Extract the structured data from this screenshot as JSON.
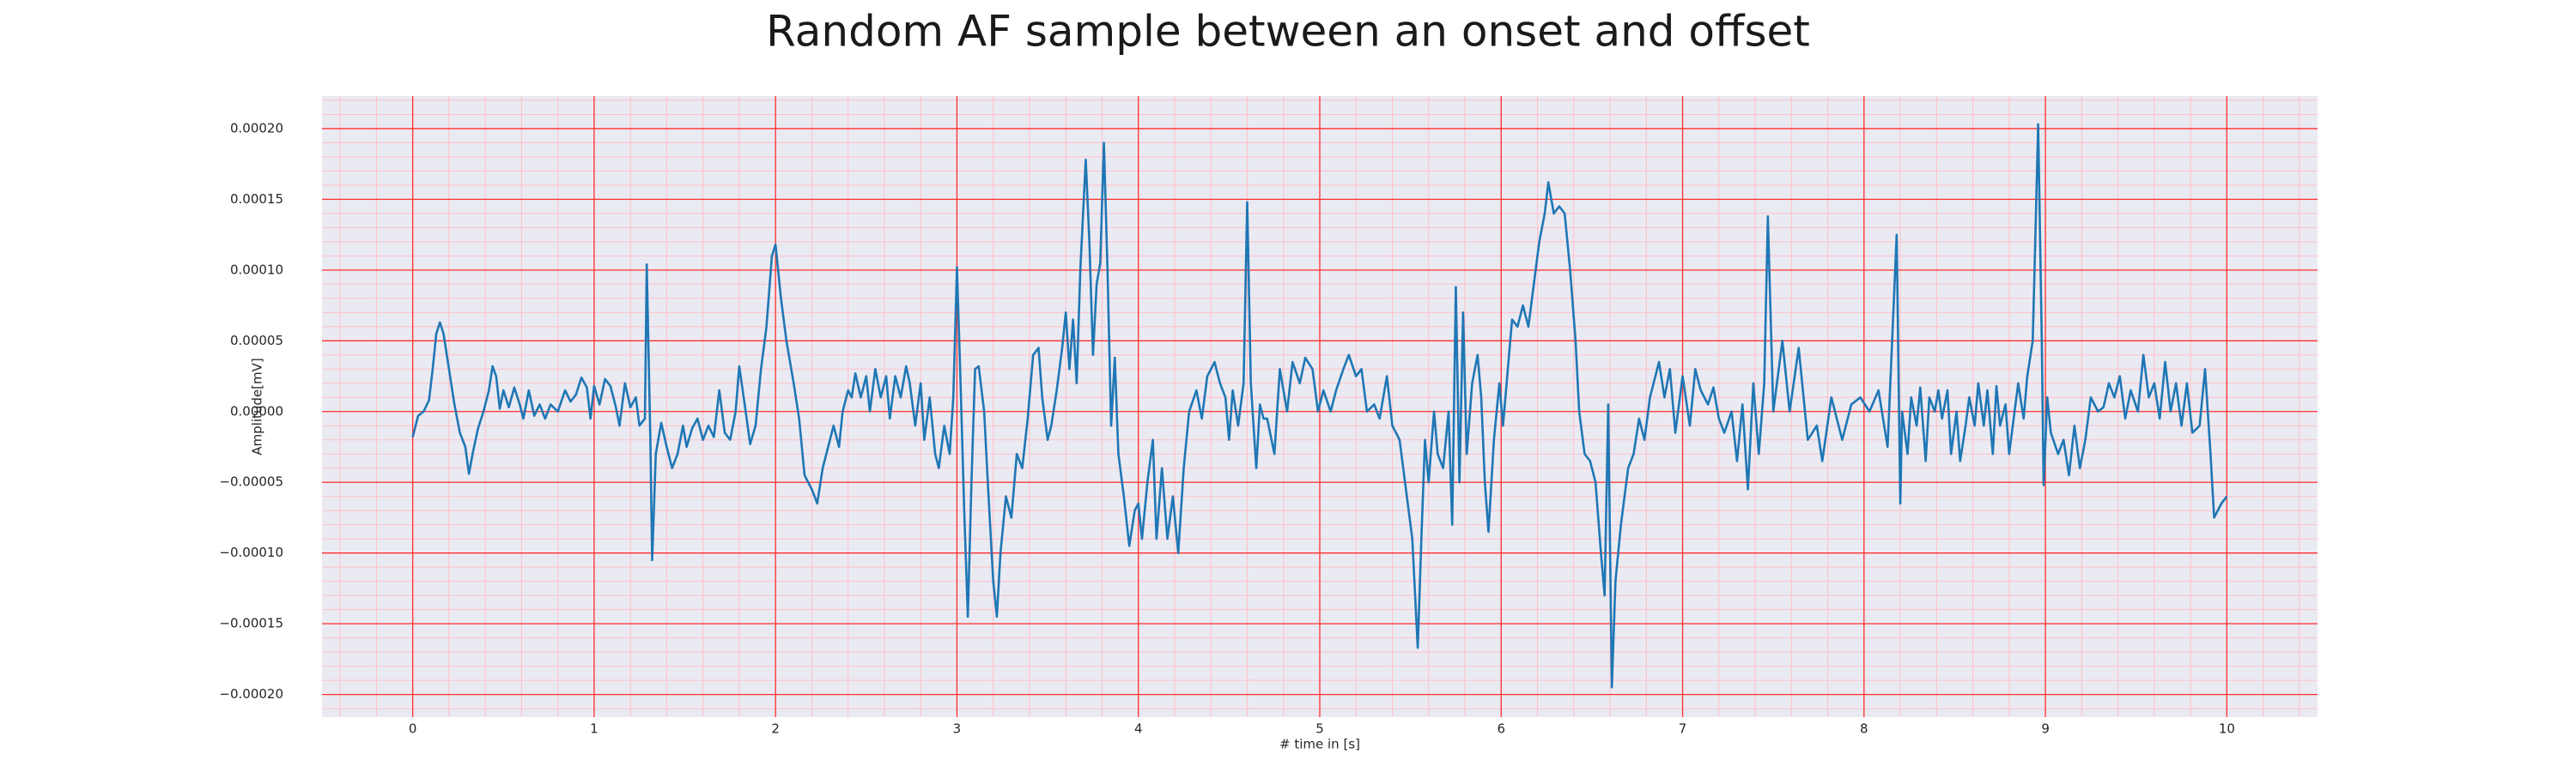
{
  "chart_data": {
    "type": "line",
    "title": "Random AF sample between an onset and offset",
    "xlabel": "# time in [s]",
    "ylabel": "Amplitude[mV]",
    "color": "#1f77b4",
    "background": "#eaeaf2",
    "grid": true,
    "grid_color": "#ff3030",
    "minor_grid_color": "#ffbfc8",
    "minor_grid_divisions": 5,
    "xlim": [
      -0.5,
      10.5
    ],
    "xticks": [
      0,
      1,
      2,
      3,
      4,
      5,
      6,
      7,
      8,
      9,
      10
    ],
    "ylim": [
      -0.000216,
      0.000223
    ],
    "yticks": [
      {
        "value": -0.0002,
        "label": "−0.00020"
      },
      {
        "value": -0.00015,
        "label": "−0.00015"
      },
      {
        "value": -0.0001,
        "label": "−0.00010"
      },
      {
        "value": -5e-05,
        "label": "−0.00005"
      },
      {
        "value": 0,
        "label": "0.00000"
      },
      {
        "value": 5e-05,
        "label": "0.00005"
      },
      {
        "value": 0.0001,
        "label": "0.00010"
      },
      {
        "value": 0.00015,
        "label": "0.00015"
      },
      {
        "value": 0.0002,
        "label": "0.00020"
      }
    ],
    "x": [
      0,
      0.03,
      0.06,
      0.09,
      0.11,
      0.13,
      0.15,
      0.17,
      0.2,
      0.23,
      0.26,
      0.29,
      0.31,
      0.33,
      0.36,
      0.39,
      0.42,
      0.44,
      0.46,
      0.48,
      0.5,
      0.53,
      0.56,
      0.59,
      0.61,
      0.64,
      0.67,
      0.7,
      0.73,
      0.76,
      0.8,
      0.84,
      0.87,
      0.9,
      0.93,
      0.96,
      0.98,
      1.0,
      1.03,
      1.06,
      1.09,
      1.12,
      1.14,
      1.17,
      1.2,
      1.23,
      1.25,
      1.28,
      1.29,
      1.31,
      1.32,
      1.34,
      1.37,
      1.4,
      1.43,
      1.46,
      1.49,
      1.51,
      1.54,
      1.57,
      1.6,
      1.63,
      1.66,
      1.69,
      1.72,
      1.75,
      1.78,
      1.8,
      1.83,
      1.86,
      1.89,
      1.92,
      1.95,
      1.98,
      2.0,
      2.03,
      2.06,
      2.1,
      2.13,
      2.16,
      2.2,
      2.23,
      2.26,
      2.29,
      2.32,
      2.35,
      2.37,
      2.4,
      2.42,
      2.44,
      2.47,
      2.5,
      2.52,
      2.55,
      2.58,
      2.61,
      2.63,
      2.66,
      2.69,
      2.72,
      2.74,
      2.77,
      2.8,
      2.82,
      2.85,
      2.88,
      2.9,
      2.93,
      2.96,
      2.98,
      3.0,
      3.02,
      3.04,
      3.06,
      3.08,
      3.1,
      3.12,
      3.15,
      3.17,
      3.2,
      3.22,
      3.24,
      3.27,
      3.3,
      3.33,
      3.36,
      3.39,
      3.42,
      3.45,
      3.47,
      3.5,
      3.52,
      3.55,
      3.58,
      3.6,
      3.62,
      3.64,
      3.66,
      3.68,
      3.71,
      3.73,
      3.75,
      3.77,
      3.79,
      3.81,
      3.83,
      3.85,
      3.87,
      3.89,
      3.92,
      3.95,
      3.98,
      4.0,
      4.02,
      4.05,
      4.08,
      4.1,
      4.13,
      4.16,
      4.19,
      4.22,
      4.25,
      4.28,
      4.32,
      4.35,
      4.38,
      4.42,
      4.45,
      4.48,
      4.5,
      4.52,
      4.55,
      4.58,
      4.6,
      4.62,
      4.65,
      4.67,
      4.69,
      4.71,
      4.75,
      4.78,
      4.82,
      4.85,
      4.89,
      4.92,
      4.96,
      4.99,
      5.02,
      5.06,
      5.09,
      5.13,
      5.16,
      5.2,
      5.23,
      5.26,
      5.3,
      5.33,
      5.37,
      5.4,
      5.44,
      5.47,
      5.51,
      5.54,
      5.56,
      5.58,
      5.6,
      5.63,
      5.65,
      5.68,
      5.71,
      5.73,
      5.75,
      5.77,
      5.79,
      5.81,
      5.84,
      5.87,
      5.89,
      5.91,
      5.93,
      5.96,
      5.99,
      6.01,
      6.03,
      6.06,
      6.09,
      6.12,
      6.15,
      6.18,
      6.21,
      6.24,
      6.26,
      6.29,
      6.32,
      6.35,
      6.38,
      6.41,
      6.43,
      6.46,
      6.49,
      6.52,
      6.55,
      6.57,
      6.59,
      6.61,
      6.63,
      6.66,
      6.7,
      6.73,
      6.76,
      6.79,
      6.82,
      6.87,
      6.9,
      6.93,
      6.96,
      7.0,
      7.04,
      7.07,
      7.1,
      7.14,
      7.17,
      7.2,
      7.23,
      7.27,
      7.3,
      7.33,
      7.36,
      7.39,
      7.42,
      7.45,
      7.47,
      7.5,
      7.55,
      7.59,
      7.64,
      7.69,
      7.74,
      7.77,
      7.82,
      7.88,
      7.93,
      7.98,
      8.03,
      8.08,
      8.13,
      8.18,
      8.2,
      8.21,
      8.24,
      8.26,
      8.29,
      8.31,
      8.34,
      8.36,
      8.39,
      8.41,
      8.43,
      8.46,
      8.48,
      8.51,
      8.53,
      8.56,
      8.58,
      8.61,
      8.63,
      8.66,
      8.68,
      8.71,
      8.73,
      8.75,
      8.78,
      8.8,
      8.83,
      8.85,
      8.88,
      8.9,
      8.93,
      8.94,
      8.96,
      8.98,
      8.99,
      9.01,
      9.03,
      9.07,
      9.1,
      9.13,
      9.16,
      9.19,
      9.22,
      9.25,
      9.29,
      9.32,
      9.35,
      9.38,
      9.41,
      9.44,
      9.47,
      9.51,
      9.54,
      9.57,
      9.6,
      9.63,
      9.66,
      9.69,
      9.72,
      9.75,
      9.78,
      9.81,
      9.85,
      9.88,
      9.91,
      9.93,
      9.95,
      9.97,
      10.0
    ],
    "values": [
      -1.8e-05,
      -3e-06,
      0,
      8e-06,
      3e-05,
      5.5e-05,
      6.3e-05,
      5.5e-05,
      3e-05,
      5e-06,
      -1.5e-05,
      -2.5e-05,
      -4.4e-05,
      -3e-05,
      -1.2e-05,
      0,
      1.5e-05,
      3.2e-05,
      2.5e-05,
      2e-06,
      1.5e-05,
      3e-06,
      1.7e-05,
      5e-06,
      -5e-06,
      1.5e-05,
      -3e-06,
      5e-06,
      -5e-06,
      5e-06,
      0,
      1.5e-05,
      7e-06,
      1.2e-05,
      2.4e-05,
      1.7e-05,
      -5e-06,
      1.8e-05,
      5e-06,
      2.3e-05,
      1.8e-05,
      3e-06,
      -1e-05,
      2e-05,
      3e-06,
      1e-05,
      -1e-05,
      -5e-06,
      0.000104,
      -2e-05,
      -0.000105,
      -3e-05,
      -8e-06,
      -2.5e-05,
      -4e-05,
      -3e-05,
      -1e-05,
      -2.5e-05,
      -1.2e-05,
      -5e-06,
      -2e-05,
      -1e-05,
      -1.8e-05,
      1.5e-05,
      -1.5e-05,
      -2e-05,
      0,
      3.2e-05,
      5e-06,
      -2.3e-05,
      -1e-05,
      3e-05,
      6e-05,
      0.00011,
      0.000118,
      8e-05,
      5e-05,
      2e-05,
      -5e-06,
      -4.5e-05,
      -5.5e-05,
      -6.5e-05,
      -4e-05,
      -2.5e-05,
      -1e-05,
      -2.5e-05,
      0,
      1.5e-05,
      1e-05,
      2.7e-05,
      1e-05,
      2.5e-05,
      0,
      3e-05,
      1e-05,
      2.5e-05,
      -5e-06,
      2.5e-05,
      1e-05,
      3.2e-05,
      2e-05,
      -1e-05,
      2e-05,
      -2e-05,
      1e-05,
      -3e-05,
      -4e-05,
      -1e-05,
      -3e-05,
      1e-05,
      0.000102,
      2e-05,
      -7e-05,
      -0.000145,
      -5e-05,
      3e-05,
      3.2e-05,
      0,
      -5e-05,
      -0.00012,
      -0.000145,
      -0.0001,
      -6e-05,
      -7.5e-05,
      -3e-05,
      -4e-05,
      -5e-06,
      4e-05,
      4.5e-05,
      1e-05,
      -2e-05,
      -1e-05,
      1.5e-05,
      4.5e-05,
      7e-05,
      3e-05,
      6.5e-05,
      2e-05,
      0.0001,
      0.000178,
      0.00012,
      4e-05,
      9e-05,
      0.000105,
      0.00019,
      0.0001,
      -1e-05,
      3.8e-05,
      -3e-05,
      -6e-05,
      -9.5e-05,
      -7e-05,
      -6.5e-05,
      -9e-05,
      -5e-05,
      -2e-05,
      -9e-05,
      -4e-05,
      -9e-05,
      -6e-05,
      -0.0001,
      -4e-05,
      0,
      1.5e-05,
      -5e-06,
      2.5e-05,
      3.5e-05,
      2e-05,
      1e-05,
      -2e-05,
      1.5e-05,
      -1e-05,
      2e-05,
      0.000148,
      2e-05,
      -4e-05,
      5e-06,
      -5e-06,
      -5e-06,
      -3e-05,
      3e-05,
      0,
      3.5e-05,
      2e-05,
      3.8e-05,
      3e-05,
      0,
      1.5e-05,
      0,
      1.5e-05,
      3e-05,
      4e-05,
      2.5e-05,
      3e-05,
      0,
      5e-06,
      -5e-06,
      2.5e-05,
      -1e-05,
      -2e-05,
      -5e-05,
      -9e-05,
      -0.000167,
      -9e-05,
      -2e-05,
      -5e-05,
      0,
      -3e-05,
      -4e-05,
      0,
      -8e-05,
      8.8e-05,
      -5e-05,
      7e-05,
      -3e-05,
      2e-05,
      4e-05,
      1e-05,
      -5e-05,
      -8.5e-05,
      -2e-05,
      2e-05,
      -1e-05,
      2e-05,
      6.5e-05,
      6e-05,
      7.5e-05,
      6e-05,
      9e-05,
      0.00012,
      0.00014,
      0.000162,
      0.00014,
      0.000145,
      0.00014,
      0.0001,
      5e-05,
      0,
      -3e-05,
      -3.5e-05,
      -5e-05,
      -0.0001,
      -0.00013,
      5e-06,
      -0.000195,
      -0.00012,
      -8e-05,
      -4e-05,
      -3e-05,
      -5e-06,
      -2e-05,
      1e-05,
      3.5e-05,
      1e-05,
      3e-05,
      -1.5e-05,
      2.5e-05,
      -1e-05,
      3e-05,
      1.5e-05,
      5e-06,
      1.7e-05,
      -5e-06,
      -1.5e-05,
      0,
      -3.5e-05,
      5e-06,
      -5.5e-05,
      2e-05,
      -3e-05,
      2e-05,
      0.000138,
      0,
      5e-05,
      0,
      4.5e-05,
      -2e-05,
      -1e-05,
      -3.5e-05,
      1e-05,
      -2e-05,
      5e-06,
      1e-05,
      0,
      1.5e-05,
      -2.5e-05,
      0.000125,
      -6.5e-05,
      0,
      -3e-05,
      1e-05,
      -1e-05,
      1.7e-05,
      -3.5e-05,
      1e-05,
      0,
      1.5e-05,
      -5e-06,
      1.5e-05,
      -3e-05,
      0,
      -3.5e-05,
      -1e-05,
      1e-05,
      -1e-05,
      2e-05,
      -1e-05,
      1.5e-05,
      -3e-05,
      1.8e-05,
      -1e-05,
      5e-06,
      -3e-05,
      0,
      2e-05,
      -5e-06,
      2.5e-05,
      5e-05,
      0.0001,
      0.000203,
      5e-05,
      -5.2e-05,
      1e-05,
      -1.5e-05,
      -3e-05,
      -2e-05,
      -4.5e-05,
      -1e-05,
      -4e-05,
      -2e-05,
      1e-05,
      0,
      3e-06,
      2e-05,
      1e-05,
      2.5e-05,
      -5e-06,
      1.5e-05,
      0,
      4e-05,
      1e-05,
      2e-05,
      -5e-06,
      3.5e-05,
      0,
      2e-05,
      -1e-05,
      2e-05,
      -1.5e-05,
      -1e-05,
      3e-05,
      -3e-05,
      -7.5e-05,
      -7e-05,
      -6.5e-05,
      -6e-05
    ]
  }
}
